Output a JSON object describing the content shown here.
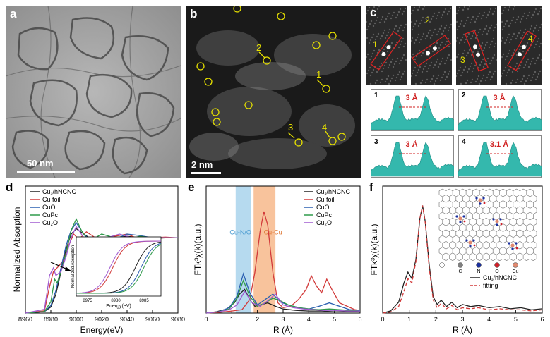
{
  "panel_labels": {
    "a": "a",
    "b": "b",
    "c": "c",
    "d": "d",
    "e": "e",
    "f": "f"
  },
  "scale_bars": {
    "a": "50 nm",
    "b": "2 nm"
  },
  "panel_b_markers": [
    "2",
    "1",
    "3",
    "4"
  ],
  "panel_c": {
    "crops": [
      "1",
      "2",
      "3",
      "4"
    ],
    "profiles": [
      {
        "id": "1",
        "label": "3 Å"
      },
      {
        "id": "2",
        "label": "3 Å"
      },
      {
        "id": "3",
        "label": "3 Å"
      },
      {
        "id": "4",
        "label": "3.1 Å"
      }
    ]
  },
  "chart_data": [
    {
      "panel": "d",
      "type": "line",
      "xlabel": "Energy(eV)",
      "ylabel": "Normalized Absorption",
      "xlim": [
        8960,
        9080
      ],
      "x_ticks": [
        "8960",
        "8980",
        "9000",
        "9020",
        "9040",
        "9060",
        "9080"
      ],
      "legend": [
        "Cu₁/hNCNC",
        "Cu foil",
        "CuO",
        "CuPc",
        "Cu₂O"
      ],
      "legend_position": "top-left",
      "colors": [
        "#222222",
        "#d23a3a",
        "#2a5fb0",
        "#2f9a4a",
        "#a05bd0"
      ],
      "series": [
        {
          "name": "Cu₁/hNCNC",
          "x": [
            8960,
            8975,
            8980,
            8984,
            8988,
            8992,
            8996,
            9000,
            9006,
            9012,
            9020,
            9030,
            9040,
            9050,
            9060,
            9070,
            9080
          ],
          "y": [
            0.0,
            0.02,
            0.08,
            0.25,
            0.55,
            0.85,
            1.05,
            1.12,
            1.05,
            0.98,
            0.95,
            1.0,
            1.02,
            1.0,
            0.99,
            1.0,
            1.0
          ]
        },
        {
          "name": "Cu foil",
          "x": [
            8960,
            8975,
            8979,
            8982,
            8986,
            8990,
            8994,
            8998,
            9002,
            9008,
            9015,
            9022,
            9030,
            9040,
            9050,
            9060,
            9070,
            9080
          ],
          "y": [
            0.0,
            0.03,
            0.35,
            0.55,
            0.62,
            0.7,
            0.9,
            1.05,
            0.98,
            1.08,
            1.0,
            0.95,
            1.02,
            1.05,
            0.98,
            1.0,
            1.01,
            1.0
          ]
        },
        {
          "name": "CuO",
          "x": [
            8960,
            8975,
            8980,
            8984,
            8988,
            8992,
            8996,
            9000,
            9006,
            9012,
            9020,
            9030,
            9040,
            9050,
            9060,
            9070,
            9080
          ],
          "y": [
            0.0,
            0.02,
            0.1,
            0.3,
            0.6,
            0.9,
            1.1,
            1.2,
            1.05,
            0.95,
            0.9,
            0.98,
            1.05,
            1.03,
            1.0,
            1.0,
            1.0
          ]
        },
        {
          "name": "CuPc",
          "x": [
            8960,
            8975,
            8980,
            8983,
            8985,
            8988,
            8992,
            8996,
            9000,
            9004,
            9010,
            9020,
            9030,
            9040,
            9050,
            9060,
            9070,
            9080
          ],
          "y": [
            0.0,
            0.02,
            0.15,
            0.45,
            0.4,
            0.55,
            0.8,
            1.1,
            1.25,
            1.1,
            0.95,
            1.05,
            1.0,
            0.98,
            1.02,
            1.0,
            1.0,
            1.0
          ]
        },
        {
          "name": "Cu₂O",
          "x": [
            8960,
            8975,
            8979,
            8982,
            8984,
            8988,
            8992,
            8996,
            9000,
            9006,
            9014,
            9024,
            9034,
            9044,
            9054,
            9064,
            9080
          ],
          "y": [
            0.0,
            0.05,
            0.5,
            0.6,
            0.5,
            0.55,
            0.75,
            1.0,
            1.15,
            1.0,
            0.92,
            1.0,
            1.05,
            1.0,
            0.98,
            1.0,
            1.0
          ]
        }
      ],
      "inset": {
        "xlabel": "Energy(eV)",
        "ylabel": "Normalized Absorption",
        "x_ticks": [
          "8975",
          "8980",
          "8985"
        ],
        "xlim": [
          8973,
          8988
        ]
      }
    },
    {
      "panel": "e",
      "type": "line",
      "xlabel": "R (Å)",
      "ylabel": "FTk³χ(k)(a.u.)",
      "xlim": [
        0,
        6
      ],
      "x_ticks": [
        "0",
        "1",
        "2",
        "3",
        "4",
        "5",
        "6"
      ],
      "legend": [
        "Cu₁/hNCNC",
        "Cu foil",
        "CuO",
        "CuPc",
        "Cu₂O"
      ],
      "legend_position": "top-right",
      "colors": [
        "#222222",
        "#d23a3a",
        "#2a5fb0",
        "#2f9a4a",
        "#a05bd0"
      ],
      "regions": [
        {
          "label": "Cu-N/O",
          "from": 1.15,
          "to": 1.75,
          "color": "#a9d3ec"
        },
        {
          "label": "Cu-Cu",
          "from": 1.85,
          "to": 2.7,
          "color": "#f7b98b"
        }
      ],
      "series": [
        {
          "name": "Cu₁/hNCNC",
          "x": [
            0,
            0.4,
            0.8,
            1.1,
            1.3,
            1.5,
            1.7,
            1.9,
            2.1,
            2.4,
            2.7,
            3.0,
            3.5,
            4.0,
            4.5,
            5.0,
            5.5,
            6.0
          ],
          "y": [
            0.0,
            0.02,
            0.06,
            0.15,
            0.28,
            0.35,
            0.2,
            0.1,
            0.12,
            0.15,
            0.1,
            0.06,
            0.04,
            0.03,
            0.03,
            0.02,
            0.02,
            0.02
          ]
        },
        {
          "name": "Cu foil",
          "x": [
            0,
            0.5,
            1.0,
            1.4,
            1.7,
            1.9,
            2.1,
            2.25,
            2.4,
            2.6,
            2.8,
            3.0,
            3.3,
            3.6,
            3.9,
            4.1,
            4.3,
            4.5,
            4.7,
            4.9,
            5.2,
            5.5,
            5.8,
            6.0
          ],
          "y": [
            0.0,
            0.01,
            0.03,
            0.05,
            0.2,
            0.6,
            1.2,
            1.5,
            1.3,
            0.6,
            0.15,
            0.08,
            0.1,
            0.2,
            0.35,
            0.55,
            0.4,
            0.3,
            0.5,
            0.35,
            0.15,
            0.1,
            0.05,
            0.04
          ]
        },
        {
          "name": "CuO",
          "x": [
            0,
            0.5,
            0.9,
            1.2,
            1.45,
            1.7,
            2.0,
            2.3,
            2.6,
            2.9,
            3.2,
            3.6,
            4.0,
            4.4,
            4.8,
            5.2,
            5.6,
            6.0
          ],
          "y": [
            0.0,
            0.02,
            0.08,
            0.25,
            0.58,
            0.3,
            0.12,
            0.2,
            0.28,
            0.16,
            0.12,
            0.08,
            0.06,
            0.1,
            0.15,
            0.1,
            0.05,
            0.04
          ]
        },
        {
          "name": "CuPc",
          "x": [
            0,
            0.5,
            0.9,
            1.2,
            1.45,
            1.7,
            2.0,
            2.3,
            2.6,
            2.9,
            3.2,
            3.6,
            4.0,
            4.4,
            4.8,
            5.2,
            5.6,
            6.0
          ],
          "y": [
            0.0,
            0.02,
            0.06,
            0.22,
            0.48,
            0.25,
            0.1,
            0.15,
            0.22,
            0.18,
            0.12,
            0.08,
            0.06,
            0.05,
            0.06,
            0.05,
            0.04,
            0.03
          ]
        },
        {
          "name": "Cu₂O",
          "x": [
            0,
            0.5,
            0.9,
            1.2,
            1.5,
            1.8,
            2.1,
            2.4,
            2.7,
            3.0,
            3.4,
            3.8,
            4.2,
            4.6,
            5.0,
            5.5,
            6.0
          ],
          "y": [
            0.0,
            0.02,
            0.05,
            0.12,
            0.32,
            0.15,
            0.1,
            0.18,
            0.28,
            0.12,
            0.08,
            0.06,
            0.05,
            0.04,
            0.04,
            0.03,
            0.03
          ]
        }
      ]
    },
    {
      "panel": "f",
      "type": "line",
      "xlabel": "R (Å)",
      "ylabel": "FTk³χ(k)(a.u.)",
      "xlim": [
        0,
        6
      ],
      "x_ticks": [
        "0",
        "1",
        "2",
        "3",
        "4",
        "5",
        "6"
      ],
      "legend": [
        "Cu₁/hNCNC",
        "fitting"
      ],
      "legend_position": "bottom-right",
      "colors": [
        "#222222",
        "#d23a3a"
      ],
      "series": [
        {
          "name": "Cu₁/hNCNC",
          "x": [
            0,
            0.3,
            0.6,
            0.8,
            0.95,
            1.1,
            1.25,
            1.4,
            1.5,
            1.6,
            1.75,
            1.9,
            2.05,
            2.2,
            2.4,
            2.6,
            2.8,
            3.0,
            3.3,
            3.6,
            4.0,
            4.4,
            4.8,
            5.2,
            5.6,
            6.0
          ],
          "y": [
            0.0,
            0.02,
            0.1,
            0.28,
            0.38,
            0.32,
            0.5,
            0.88,
            1.0,
            0.85,
            0.45,
            0.15,
            0.08,
            0.12,
            0.06,
            0.1,
            0.05,
            0.08,
            0.06,
            0.07,
            0.05,
            0.06,
            0.04,
            0.05,
            0.03,
            0.04
          ]
        },
        {
          "name": "fitting",
          "x": [
            0,
            0.3,
            0.6,
            0.8,
            0.95,
            1.1,
            1.25,
            1.4,
            1.5,
            1.6,
            1.75,
            1.9,
            2.05,
            2.2,
            2.4,
            2.6,
            2.8,
            3.0,
            3.3,
            3.6,
            4.0,
            4.4,
            4.8,
            5.2,
            5.6,
            6.0
          ],
          "y": [
            0.0,
            0.01,
            0.06,
            0.2,
            0.32,
            0.28,
            0.48,
            0.88,
            1.0,
            0.84,
            0.42,
            0.12,
            0.05,
            0.09,
            0.04,
            0.07,
            0.03,
            0.05,
            0.04,
            0.05,
            0.03,
            0.04,
            0.03,
            0.03,
            0.02,
            0.03
          ]
        }
      ],
      "inset_legend": [
        "H",
        "C",
        "N",
        "O",
        "Cu"
      ],
      "inset_legend_colors": [
        "#ffffff",
        "#808080",
        "#1a2fa0",
        "#d0202a",
        "#e08a70"
      ]
    }
  ]
}
